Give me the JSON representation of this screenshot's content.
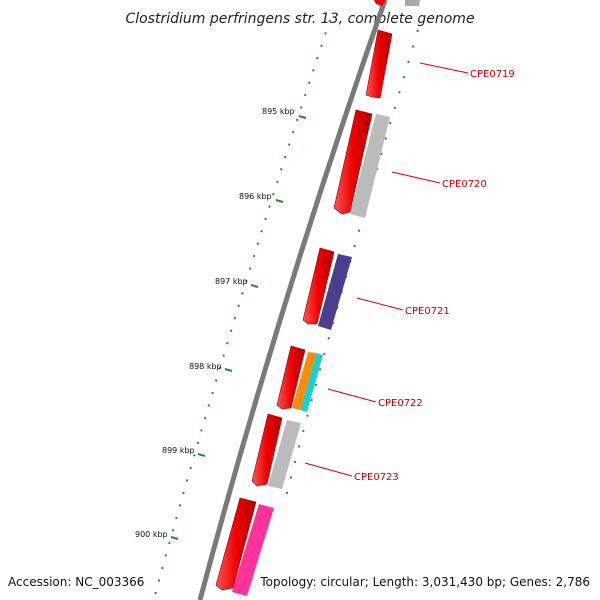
{
  "title": "Clostridium perfringens str. 13, complete genome",
  "footer": {
    "accession": "Accession: NC_003366",
    "topology": "Topology: circular; Length: 3,031,430 bp; Genes: 2,786"
  },
  "ticks": [
    {
      "label": "895 kbp",
      "kbp": 895
    },
    {
      "label": "896 kbp",
      "kbp": 896
    },
    {
      "label": "897 kbp",
      "kbp": 897
    },
    {
      "label": "898 kbp",
      "kbp": 898
    },
    {
      "label": "899 kbp",
      "kbp": 899
    },
    {
      "label": "900 kbp",
      "kbp": 900
    }
  ],
  "genes": [
    {
      "name": "CPE0719",
      "color": "#aaaaaa"
    },
    {
      "name": "CPE0720",
      "color": "#bbbbbb"
    },
    {
      "name": "CPE0721",
      "color": "#4a3f8f"
    },
    {
      "name": "CPE0722",
      "color": "#ff8c00",
      "color2": "#22cccc"
    },
    {
      "name": "CPE0723",
      "color": "#bbbbbb"
    },
    {
      "name": "",
      "color": "#ff3399"
    }
  ],
  "colors": {
    "forward_cds": "#ee0000",
    "backbone": "#777777",
    "tick": "#2a8a2a",
    "label_line": "#dd0000"
  }
}
